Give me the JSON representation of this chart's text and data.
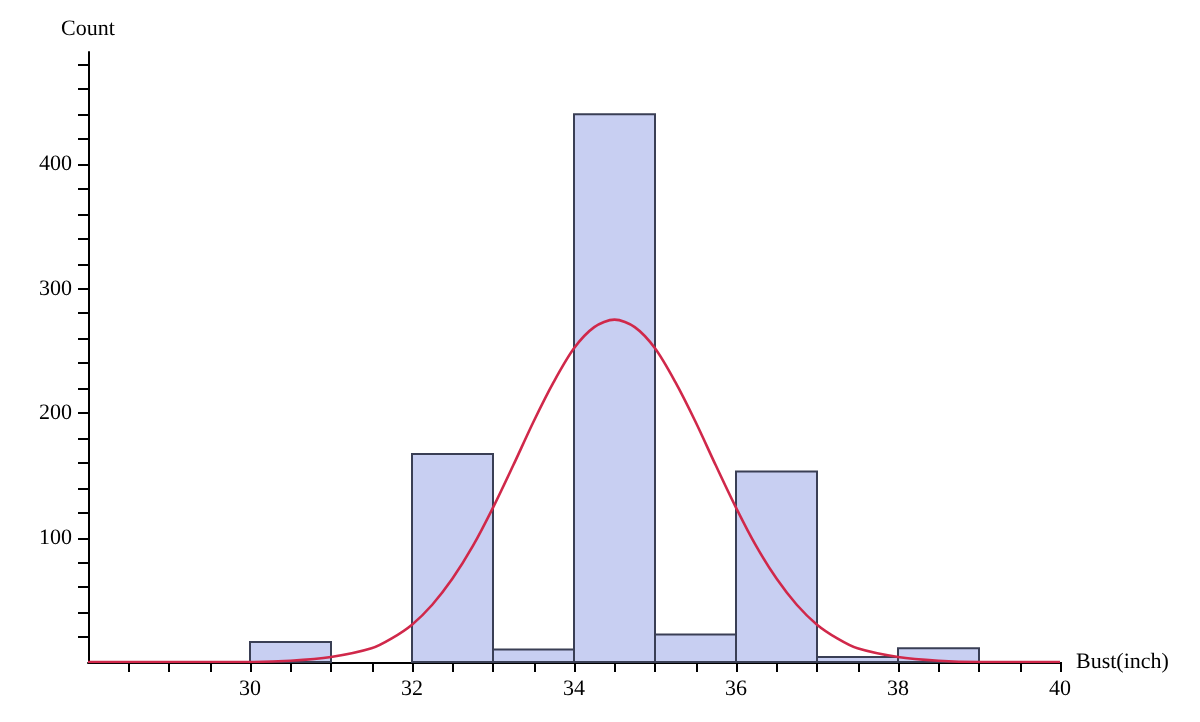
{
  "chart_data": {
    "type": "histogram",
    "xlabel": "Bust(inch)",
    "ylabel": "Count",
    "xlim": [
      28,
      40
    ],
    "ylim": [
      0,
      490
    ],
    "xticks": [
      {
        "value": 28.5,
        "label": null
      },
      {
        "value": 29,
        "label": null
      },
      {
        "value": 29.5,
        "label": null
      },
      30,
      {
        "value": 30.5,
        "label": null
      },
      {
        "value": 31,
        "label": null
      },
      {
        "value": 31.5,
        "label": null
      },
      32,
      {
        "value": 32.5,
        "label": null
      },
      {
        "value": 33,
        "label": null
      },
      {
        "value": 33.5,
        "label": null
      },
      34,
      {
        "value": 34.5,
        "label": null
      },
      {
        "value": 35,
        "label": null
      },
      {
        "value": 35.5,
        "label": null
      },
      36,
      {
        "value": 36.5,
        "label": null
      },
      {
        "value": 37,
        "label": null
      },
      {
        "value": 37.5,
        "label": null
      },
      38,
      {
        "value": 38.5,
        "label": null
      },
      {
        "value": 39,
        "label": null
      },
      {
        "value": 39.5,
        "label": null
      },
      40
    ],
    "yticks": [
      {
        "value": 20,
        "label": null
      },
      {
        "value": 40,
        "label": null
      },
      {
        "value": 60,
        "label": null
      },
      {
        "value": 80,
        "label": null
      },
      100,
      {
        "value": 120,
        "label": null
      },
      {
        "value": 140,
        "label": null
      },
      {
        "value": 160,
        "label": null
      },
      {
        "value": 180,
        "label": null
      },
      200,
      {
        "value": 220,
        "label": null
      },
      {
        "value": 240,
        "label": null
      },
      {
        "value": 260,
        "label": null
      },
      {
        "value": 280,
        "label": null
      },
      300,
      {
        "value": 320,
        "label": null
      },
      {
        "value": 340,
        "label": null
      },
      {
        "value": 360,
        "label": null
      },
      {
        "value": 380,
        "label": null
      },
      400,
      {
        "value": 420,
        "label": null
      },
      {
        "value": 440,
        "label": null
      },
      {
        "value": 460,
        "label": null
      },
      {
        "value": 480,
        "label": null
      }
    ],
    "grid": false,
    "series": [
      {
        "color": "#c8cff2",
        "bins": [
          30,
          31,
          32,
          33,
          34,
          35,
          36,
          37,
          38,
          39
        ],
        "values": [
          16,
          0,
          167,
          10,
          440,
          22,
          153,
          4,
          11
        ]
      },
      {
        "type": "line",
        "color": "#d0284a",
        "marker": "none",
        "x": [
          28,
          29,
          30,
          30.5,
          31,
          31.5,
          31.75,
          32,
          32.25,
          32.5,
          32.75,
          33,
          33.25,
          33.5,
          33.75,
          34,
          34.25,
          34.5,
          34.75,
          35,
          35.25,
          35.5,
          35.75,
          36,
          36.25,
          36.5,
          36.75,
          37,
          37.25,
          37.5,
          38,
          38.5,
          39,
          40
        ],
        "values": [
          0,
          0,
          0,
          1,
          4,
          11,
          19,
          30,
          46,
          67,
          93,
          124,
          158,
          193,
          225,
          252,
          269,
          275,
          269,
          252,
          225,
          193,
          158,
          124,
          93,
          67,
          46,
          30,
          19,
          11,
          4,
          1,
          0,
          0
        ]
      }
    ]
  }
}
